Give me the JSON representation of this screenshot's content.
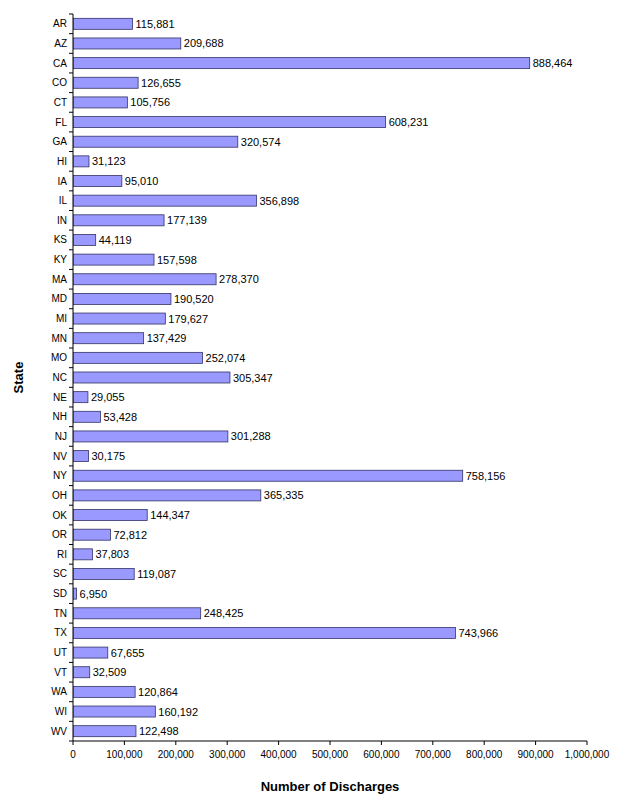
{
  "chart_data": {
    "type": "bar",
    "orientation": "horizontal",
    "x_label": "Number of Discharges",
    "y_label": "State",
    "categories": [
      "AR",
      "AZ",
      "CA",
      "CO",
      "CT",
      "FL",
      "GA",
      "HI",
      "IA",
      "IL",
      "IN",
      "KS",
      "KY",
      "MA",
      "MD",
      "MI",
      "MN",
      "MO",
      "NC",
      "NE",
      "NH",
      "NJ",
      "NV",
      "NY",
      "OH",
      "OK",
      "OR",
      "RI",
      "SC",
      "SD",
      "TN",
      "TX",
      "UT",
      "VT",
      "WA",
      "WI",
      "WV"
    ],
    "values": [
      115881,
      209688,
      888464,
      126655,
      105756,
      608231,
      320574,
      31123,
      95010,
      356898,
      177139,
      44119,
      157598,
      278370,
      190520,
      179627,
      137429,
      252074,
      305347,
      29055,
      53428,
      301288,
      30175,
      758156,
      365335,
      144347,
      72812,
      37803,
      119087,
      6950,
      248425,
      743966,
      67655,
      32509,
      120864,
      160192,
      122498
    ],
    "value_labels": [
      "115,881",
      "209,688",
      "888,464",
      "126,655",
      "105,756",
      "608,231",
      "320,574",
      "31,123",
      "95,010",
      "356,898",
      "177,139",
      "44,119",
      "157,598",
      "278,370",
      "190,520",
      "179,627",
      "137,429",
      "252,074",
      "305,347",
      "29,055",
      "53,428",
      "301,288",
      "30,175",
      "758,156",
      "365,335",
      "144,347",
      "72,812",
      "37,803",
      "119,087",
      "6,950",
      "248,425",
      "743,966",
      "67,655",
      "32,509",
      "120,864",
      "160,192",
      "122,498"
    ],
    "data_labels": true,
    "color": "#9999ff",
    "xlim": [
      0,
      1000000
    ],
    "xticks": [
      0,
      {
        "value": 100000,
        "label": "100,000"
      },
      {
        "value": 200000,
        "label": "200,000"
      },
      {
        "value": 300000,
        "label": "300,000"
      },
      {
        "value": 400000,
        "label": "400,000"
      },
      {
        "value": 500000,
        "label": "500,000"
      },
      {
        "value": 600000,
        "label": "600,000"
      },
      {
        "value": 700000,
        "label": "700,000"
      },
      {
        "value": 800000,
        "label": "800,000"
      },
      {
        "value": 900000,
        "label": "900,000"
      },
      {
        "value": 1000000,
        "label": "1,000,000"
      }
    ],
    "grid": false
  }
}
